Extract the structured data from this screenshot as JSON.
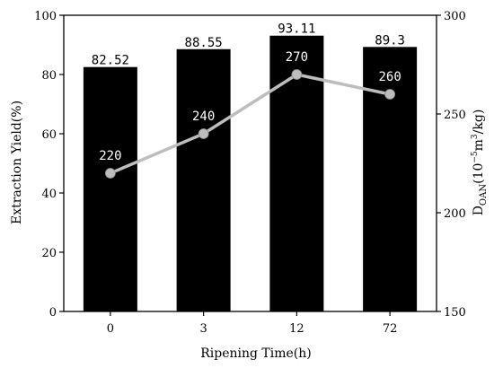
{
  "chart_data": {
    "type": "bar",
    "xlabel": "Ripening Time(h)",
    "categories": [
      "0",
      "3",
      "12",
      "72"
    ],
    "y_left": {
      "label": "Extraction Yield(%)",
      "ylim": [
        0,
        100
      ],
      "ticks": [
        "0",
        "20",
        "40",
        "60",
        "80",
        "100"
      ]
    },
    "y_right": {
      "label_main": "D",
      "label_sub": "OAN",
      "label_unit_a": "(10",
      "label_sup_a": "−5",
      "label_unit_b": "m",
      "label_sup_b": "3",
      "label_unit_c": "/kg)",
      "ylim": [
        150,
        300
      ],
      "ticks": [
        "150",
        "200",
        "250",
        "300"
      ]
    },
    "series": [
      {
        "type": "bar",
        "axis": "left",
        "color": "#000000",
        "values": [
          82.52,
          88.55,
          93.11,
          89.3
        ],
        "labels": [
          "82.52",
          "88.55",
          "93.11",
          "89.3"
        ]
      },
      {
        "type": "line",
        "axis": "right",
        "color": "#bdbdbd",
        "values": [
          220,
          240,
          270,
          260
        ],
        "labels": [
          "220",
          "240",
          "270",
          "260"
        ]
      }
    ],
    "grid": false
  }
}
